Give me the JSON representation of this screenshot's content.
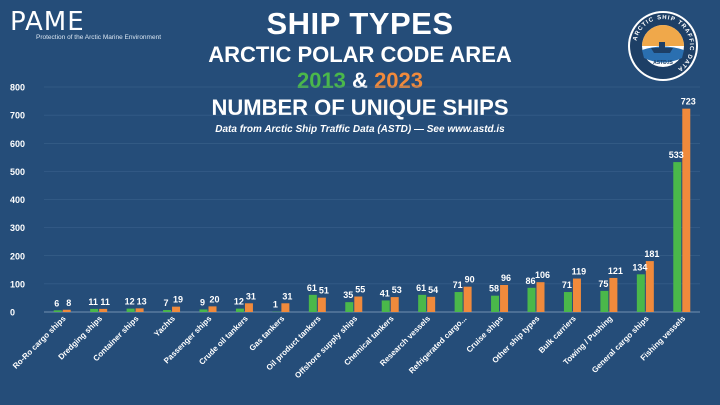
{
  "header": {
    "logo_text": "PAME",
    "logo_subtitle": "Protection of the Arctic Marine Environment",
    "title_line1": "SHIP TYPES",
    "title_line2": "ARCTIC POLAR CODE AREA",
    "year_a": "2013",
    "amp": "&",
    "year_b": "2023",
    "title_line4": "NUMBER OF UNIQUE SHIPS",
    "source": "Data from Arctic Ship Traffic Data (ASTD) — See www.astd.is"
  },
  "badge": {
    "ring_text": "ARCTIC SHIP TRAFFIC DATA",
    "label": "ASTD.IS"
  },
  "colors": {
    "background": "#254d79",
    "series_2013": "#4ab84a",
    "series_2023": "#f08a3c",
    "gridline": "#3f6690"
  },
  "chart_data": {
    "type": "bar",
    "title": "Ship Types Arctic Polar Code Area 2013 & 2023 Number of Unique Ships",
    "xlabel": "",
    "ylabel": "",
    "ylim": [
      0,
      800
    ],
    "yticks": [
      0,
      100,
      200,
      300,
      400,
      500,
      600,
      700,
      800
    ],
    "categories": [
      "Ro-Ro cargo ships",
      "Dredging ships",
      "Container ships",
      "Yachts",
      "Passenger ships",
      "Crude oil tankers",
      "Gas tankers",
      "Oil product tankers",
      "Offshore supply ships",
      "Chemical tankers",
      "Research vessels",
      "Refrigerated cargo...",
      "Cruise ships",
      "Other ship types",
      "Bulk carriers",
      "Towing / Pushing",
      "General cargo ships",
      "Fishing vessels"
    ],
    "series": [
      {
        "name": "2013",
        "values": [
          6,
          11,
          12,
          7,
          9,
          12,
          1,
          61,
          35,
          41,
          61,
          71,
          58,
          86,
          71,
          75,
          134,
          533
        ]
      },
      {
        "name": "2023",
        "values": [
          8,
          11,
          13,
          19,
          20,
          31,
          31,
          51,
          55,
          53,
          54,
          90,
          96,
          106,
          119,
          121,
          181,
          723
        ]
      }
    ]
  }
}
